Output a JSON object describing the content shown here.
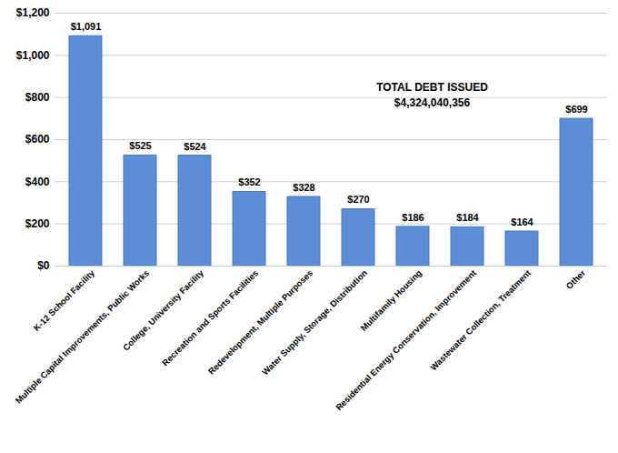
{
  "chart_data": {
    "type": "bar",
    "categories": [
      "K-12 School Facility",
      "Multiple Capital Improvements, Public Works",
      "College, University Facility",
      "Recreation and Sports Facilities",
      "Redevelopment, Multiple Purposes",
      "Water Supply, Storage, Distribution",
      "Multifamily Housing",
      "Residential Energy Conservation, Improvement",
      "Wastewater Collection, Treatment",
      "Other"
    ],
    "values": [
      1091,
      525,
      524,
      352,
      328,
      270,
      186,
      184,
      164,
      699
    ],
    "value_labels": [
      "$1,091",
      "$525",
      "$524",
      "$352",
      "$328",
      "$270",
      "$186",
      "$184",
      "$164",
      "$699"
    ],
    "color": "#5b8ed6",
    "ylim": [
      0,
      1200
    ],
    "yticks": [
      {
        "value": 0,
        "label": "$0"
      },
      {
        "value": 200,
        "label": "$200"
      },
      {
        "value": 400,
        "label": "$400"
      },
      {
        "value": 600,
        "label": "$600"
      },
      {
        "value": 800,
        "label": "$800"
      },
      {
        "value": 1000,
        "label": "$1,000"
      },
      {
        "value": 1200,
        "label": "$1,200"
      }
    ],
    "grid": true,
    "data_labels": true,
    "annotations": [
      "TOTAL DEBT ISSUED",
      "$4,324,040,356"
    ]
  }
}
